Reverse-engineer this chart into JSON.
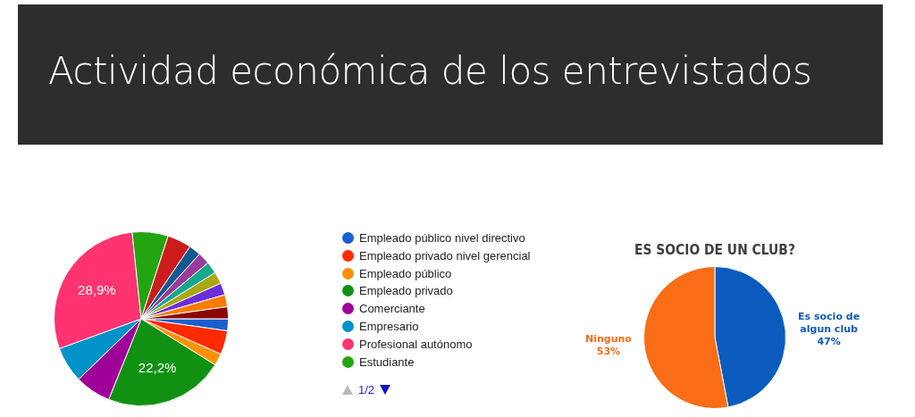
{
  "chart_data": [
    {
      "type": "pie",
      "title": "Actividad económica de los entrevistados",
      "categories": [
        "Empleado público nivel directivo",
        "Empleado privado nivel gerencial",
        "Empleado público",
        "Empleado privado",
        "Comerciante",
        "Empresario",
        "Profesional autónomo",
        "Estudiante",
        null,
        null,
        null,
        null,
        null,
        null,
        null,
        null
      ],
      "values": [
        2.22,
        4.44,
        2.22,
        22.2,
        6.67,
        6.67,
        28.9,
        6.67,
        4.44,
        2.22,
        2.22,
        2.22,
        2.22,
        2.22,
        2.22,
        2.22
      ],
      "colors": [
        "#1a5fd0",
        "#ff2a00",
        "#ff9000",
        "#119111",
        "#a0009a",
        "#0092c8",
        "#ff3370",
        "#22a511",
        "#cc1c1c",
        "#145a90",
        "#9a3a9a",
        "#18a890",
        "#a8a812",
        "#6a2ed8",
        "#ff7a00",
        "#8b0707"
      ],
      "value_labels": [
        null,
        null,
        null,
        "22,2%",
        null,
        null,
        "28,9%",
        null,
        null,
        null,
        null,
        null,
        null,
        null,
        null,
        null
      ],
      "legend": "right",
      "annotations": [
        "1/2"
      ]
    },
    {
      "type": "pie",
      "title": "ES SOCIO DE UN CLUB?",
      "categories": [
        "Es socio de algun club",
        "Ninguno"
      ],
      "values": [
        47,
        53
      ],
      "colors": [
        "#0b5bbf",
        "#f96d16"
      ],
      "value_labels": [
        "47%",
        "53%"
      ],
      "legend": false
    }
  ]
}
